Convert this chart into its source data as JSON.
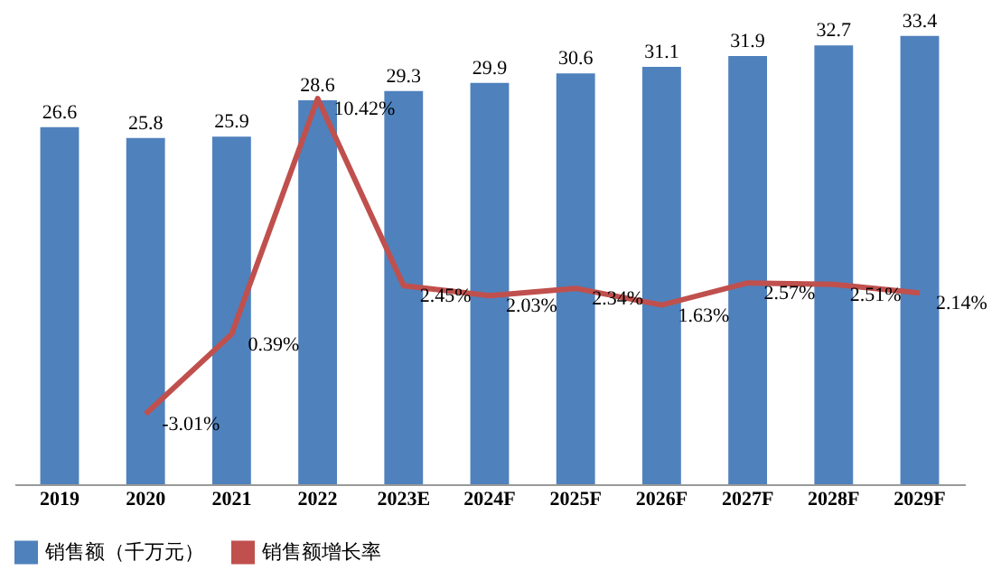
{
  "chart_data": {
    "type": "bar",
    "categories": [
      "2019",
      "2020",
      "2021",
      "2022",
      "2023E",
      "2024F",
      "2025F",
      "2026F",
      "2027F",
      "2028F",
      "2029F"
    ],
    "series": [
      {
        "name": "销售额（千万元）",
        "color": "#4f81bd",
        "values": [
          26.6,
          25.8,
          25.9,
          28.6,
          29.3,
          29.9,
          30.6,
          31.1,
          31.9,
          32.7,
          33.4
        ],
        "value_labels": [
          "26.6",
          "25.8",
          "25.9",
          "28.6",
          "29.3",
          "29.9",
          "30.6",
          "31.1",
          "31.9",
          "32.7",
          "33.4"
        ]
      },
      {
        "name": "销售额增长率",
        "type": "line",
        "axis": "y2",
        "color": "#c0504d",
        "values": [
          null,
          -3.01,
          0.39,
          10.42,
          2.45,
          2.03,
          2.34,
          1.63,
          2.57,
          2.51,
          2.14
        ],
        "value_labels": [
          null,
          "-3.01%",
          "0.39%",
          "10.42%",
          "2.45%",
          "2.03%",
          "2.34%",
          "1.63%",
          "2.57%",
          "2.51%",
          "2.14%"
        ]
      }
    ],
    "tick_labels": "x",
    "legend": "bottom",
    "grid": false
  }
}
